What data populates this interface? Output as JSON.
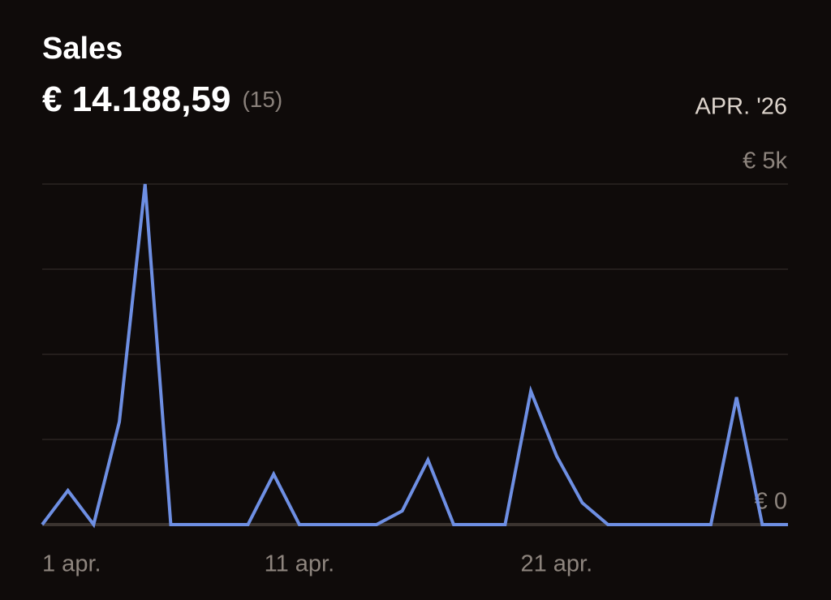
{
  "chart_data": {
    "type": "line",
    "title": "Sales",
    "total": "€ 14.188,59",
    "count": "(15)",
    "period": "APR. '26",
    "x": [
      1,
      2,
      3,
      4,
      5,
      6,
      7,
      8,
      9,
      10,
      11,
      12,
      13,
      14,
      15,
      16,
      17,
      18,
      19,
      20,
      21,
      22,
      23,
      24,
      25,
      26,
      27,
      28,
      29,
      30
    ],
    "series": [
      {
        "color": "#6e8fe3",
        "values": [
          0,
          500,
          0,
          1510,
          5000,
          0,
          0,
          0,
          0,
          740,
          0,
          0,
          0,
          0,
          200,
          950,
          0,
          0,
          0,
          1960,
          1010,
          320,
          0,
          0,
          0,
          0,
          0,
          1870,
          0,
          0
        ]
      }
    ],
    "xlim": [
      1,
      30
    ],
    "xticks": [
      {
        "value": 1,
        "label": "1 apr."
      },
      {
        "value": 11,
        "label": "11 apr."
      },
      {
        "value": 21,
        "label": "21 apr."
      }
    ],
    "ylim": [
      0,
      5000
    ],
    "yticks": [
      {
        "value": 0,
        "label": "€ 0"
      },
      {
        "value": 1250,
        "label": null
      },
      {
        "value": 2500,
        "label": null
      },
      {
        "value": 3750,
        "label": null
      },
      {
        "value": 5000,
        "label": "€ 5k"
      }
    ],
    "grid": true
  }
}
